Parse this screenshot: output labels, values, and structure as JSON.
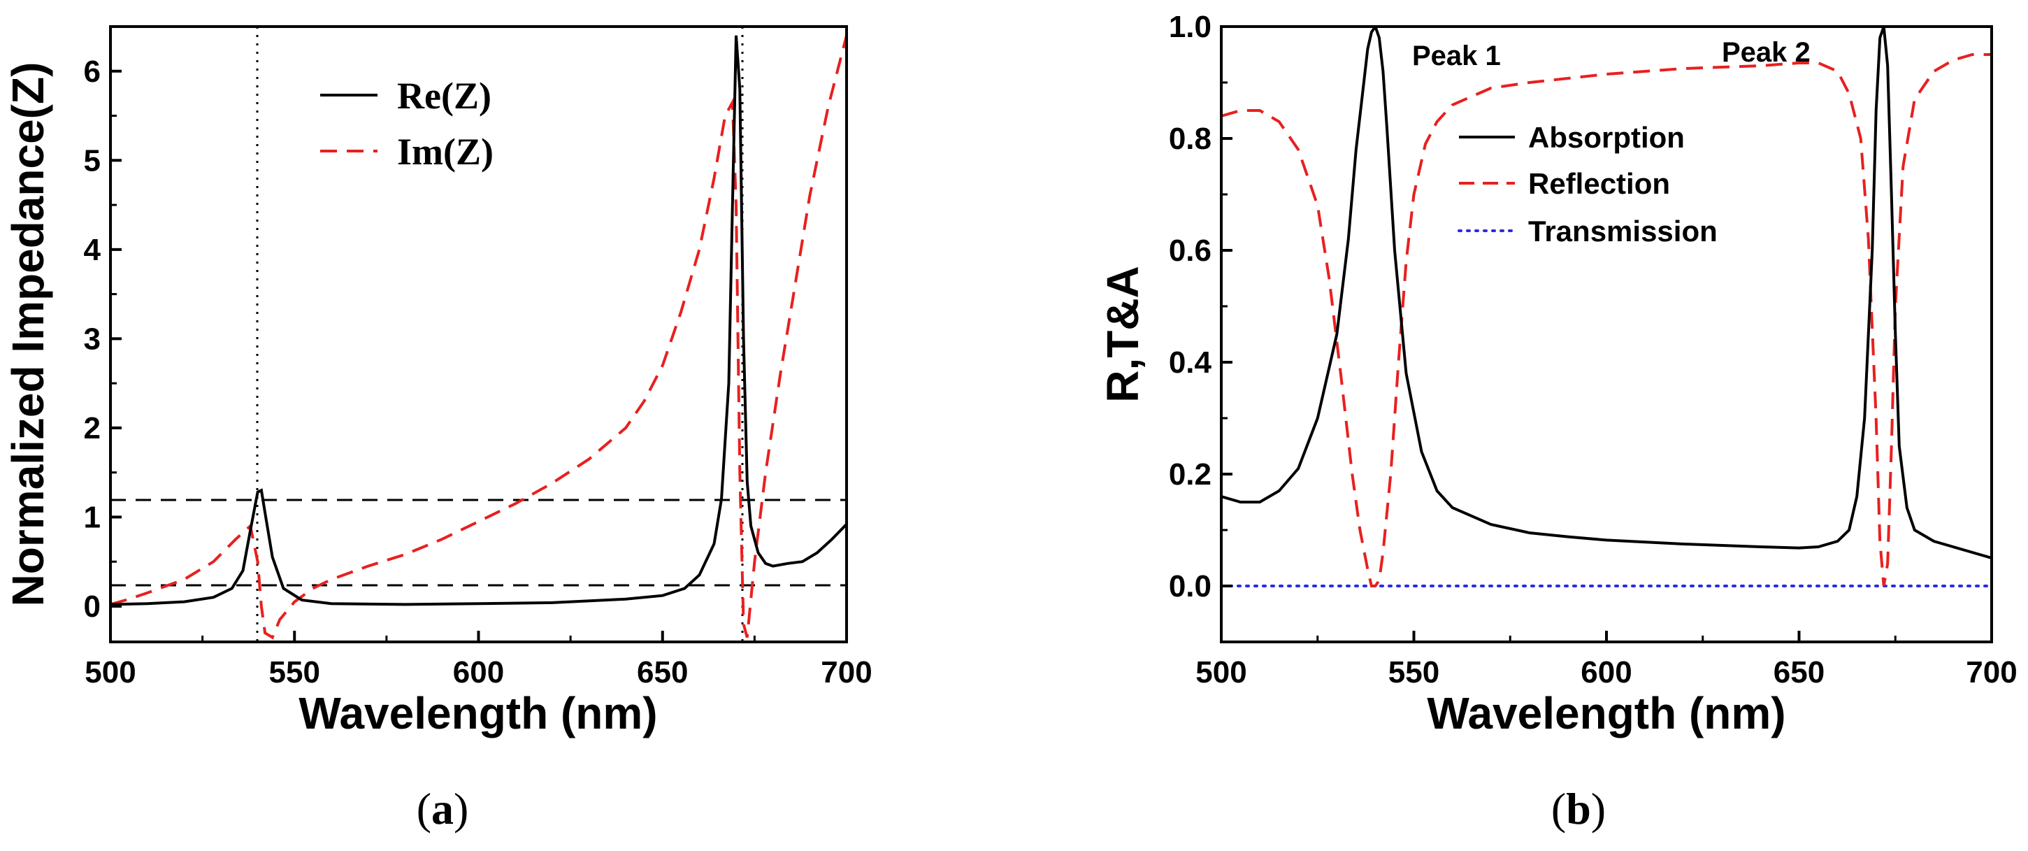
{
  "chart_data": [
    {
      "id": "a",
      "type": "line",
      "xlabel": "Wavelength (nm)",
      "ylabel": "Normalized Impedance(Z)",
      "xlim": [
        500,
        700
      ],
      "ylim": [
        -0.4,
        6.5
      ],
      "xticks": [
        500,
        550,
        600,
        650,
        700
      ],
      "yticks": [
        0,
        1,
        2,
        3,
        4,
        5,
        6
      ],
      "reference_lines": {
        "horizontal": [
          0,
          1
        ],
        "vertical": [
          541,
          673
        ]
      },
      "series": [
        {
          "name": "Re(Z)",
          "color": "#000000",
          "dash": "solid",
          "x": [
            500,
            510,
            520,
            528,
            533,
            536,
            538,
            540,
            541,
            542,
            544,
            547,
            552,
            560,
            580,
            600,
            620,
            640,
            650,
            656,
            660,
            664,
            666,
            668,
            669,
            670,
            671,
            672,
            673,
            674,
            676,
            678,
            680,
            684,
            688,
            692,
            696,
            700
          ],
          "y": [
            0.02,
            0.03,
            0.05,
            0.1,
            0.2,
            0.4,
            0.85,
            1.28,
            1.3,
            1.05,
            0.55,
            0.2,
            0.07,
            0.03,
            0.02,
            0.03,
            0.04,
            0.08,
            0.12,
            0.2,
            0.35,
            0.7,
            1.2,
            2.5,
            4.5,
            6.4,
            5.8,
            3.0,
            1.4,
            0.9,
            0.6,
            0.48,
            0.45,
            0.48,
            0.5,
            0.6,
            0.75,
            0.92
          ]
        },
        {
          "name": "Im(Z)",
          "color": "#e8201f",
          "dash": "dashed",
          "x": [
            500,
            505,
            510,
            520,
            528,
            534,
            538,
            540,
            541,
            542,
            544,
            546,
            550,
            555,
            560,
            570,
            580,
            590,
            600,
            610,
            620,
            630,
            640,
            645,
            650,
            655,
            660,
            664,
            667,
            669,
            670,
            671,
            672,
            673,
            675,
            678,
            682,
            686,
            690,
            695,
            700
          ],
          "y": [
            0.02,
            0.08,
            0.15,
            0.3,
            0.5,
            0.75,
            0.9,
            0.5,
            0.0,
            -0.3,
            -0.35,
            -0.15,
            0.05,
            0.2,
            0.3,
            0.45,
            0.58,
            0.75,
            0.95,
            1.15,
            1.38,
            1.65,
            2.0,
            2.3,
            2.7,
            3.3,
            4.0,
            4.8,
            5.5,
            5.65,
            4.5,
            1.5,
            -0.2,
            -0.35,
            0.5,
            1.5,
            2.6,
            3.6,
            4.6,
            5.6,
            6.4
          ]
        }
      ]
    },
    {
      "id": "b",
      "type": "line",
      "xlabel": "Wavelength (nm)",
      "ylabel": "R,T&A",
      "xlim": [
        500,
        700
      ],
      "ylim": [
        -0.1,
        1.0
      ],
      "xticks": [
        500,
        550,
        600,
        650,
        700
      ],
      "yticks": [
        0.0,
        0.2,
        0.4,
        0.6,
        0.8,
        1.0
      ],
      "annotations": [
        {
          "text": "Peak 1",
          "x": 540,
          "y": 1.0
        },
        {
          "text": "Peak 2",
          "x": 672,
          "y": 1.0
        }
      ],
      "series": [
        {
          "name": "Absorption",
          "color": "#000000",
          "dash": "solid",
          "x": [
            500,
            505,
            510,
            515,
            520,
            525,
            530,
            533,
            535,
            537,
            538,
            539,
            540,
            541,
            542,
            543,
            545,
            548,
            552,
            556,
            560,
            570,
            580,
            590,
            600,
            620,
            640,
            650,
            655,
            660,
            663,
            665,
            667,
            669,
            670,
            671,
            672,
            673,
            674,
            675,
            676,
            678,
            680,
            685,
            690,
            695,
            700
          ],
          "y": [
            0.16,
            0.15,
            0.15,
            0.17,
            0.21,
            0.3,
            0.45,
            0.62,
            0.78,
            0.9,
            0.96,
            0.99,
            1.0,
            0.98,
            0.92,
            0.82,
            0.6,
            0.38,
            0.24,
            0.17,
            0.14,
            0.11,
            0.095,
            0.088,
            0.082,
            0.075,
            0.07,
            0.068,
            0.07,
            0.08,
            0.1,
            0.16,
            0.3,
            0.6,
            0.85,
            0.98,
            1.0,
            0.93,
            0.7,
            0.45,
            0.25,
            0.14,
            0.1,
            0.08,
            0.07,
            0.06,
            0.05
          ]
        },
        {
          "name": "Reflection",
          "color": "#e8201f",
          "dash": "dashed",
          "x": [
            500,
            505,
            510,
            515,
            520,
            525,
            528,
            531,
            534,
            536,
            538,
            539,
            540,
            541,
            542,
            544,
            546,
            548,
            550,
            553,
            556,
            560,
            570,
            580,
            600,
            620,
            640,
            650,
            655,
            660,
            663,
            666,
            668,
            670,
            671,
            672,
            673,
            674,
            675,
            677,
            680,
            685,
            690,
            695,
            700
          ],
          "y": [
            0.84,
            0.85,
            0.85,
            0.83,
            0.78,
            0.68,
            0.55,
            0.38,
            0.2,
            0.1,
            0.03,
            0.0,
            0.0,
            0.01,
            0.06,
            0.2,
            0.4,
            0.58,
            0.7,
            0.79,
            0.83,
            0.86,
            0.89,
            0.9,
            0.915,
            0.925,
            0.93,
            0.935,
            0.935,
            0.92,
            0.88,
            0.8,
            0.62,
            0.3,
            0.08,
            0.0,
            0.04,
            0.25,
            0.5,
            0.75,
            0.87,
            0.92,
            0.94,
            0.95,
            0.95
          ]
        },
        {
          "name": "Transmission",
          "color": "#2a2ae8",
          "dash": "dotted",
          "x": [
            500,
            550,
            600,
            650,
            700
          ],
          "y": [
            0,
            0,
            0,
            0,
            0
          ]
        }
      ]
    }
  ],
  "captions": {
    "a": "a",
    "b": "b"
  }
}
